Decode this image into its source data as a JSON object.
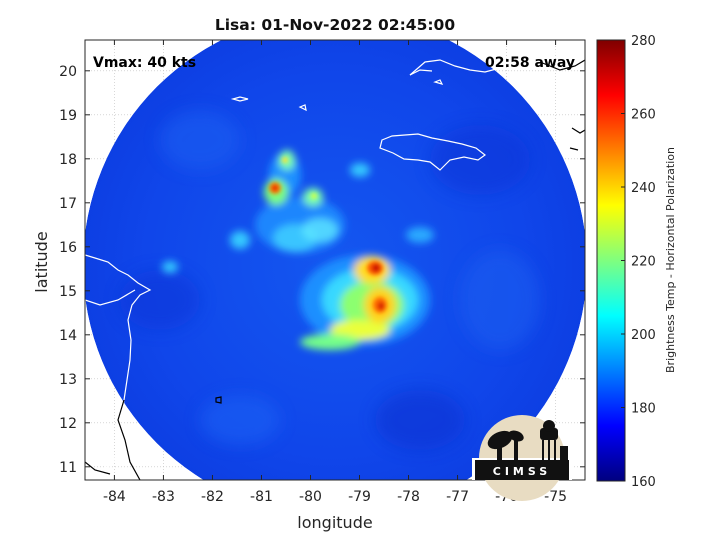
{
  "title": "Lisa: 01-Nov-2022 02:45:00",
  "annotations": {
    "vmax": "Vmax: 40 kts",
    "away": "02:58 away"
  },
  "axes": {
    "xlabel": "longitude",
    "ylabel": "latitude",
    "xlim": [
      -84.6,
      -74.4
    ],
    "ylim": [
      10.7,
      20.7
    ],
    "xticks": [
      -84,
      -83,
      -82,
      -81,
      -80,
      -79,
      -78,
      -77,
      -76,
      -75
    ],
    "yticks": [
      11,
      12,
      13,
      14,
      15,
      16,
      17,
      18,
      19,
      20
    ],
    "grid": true
  },
  "colorbar": {
    "label": "Brightness Temp - Horizontal Polarization",
    "range": [
      160,
      280
    ],
    "ticks": [
      160,
      180,
      200,
      220,
      240,
      260,
      280
    ],
    "colormap": "jet",
    "colormap_stops": [
      "#00007f",
      "#0000ff",
      "#007fff",
      "#00ffff",
      "#7fff7f",
      "#ffff00",
      "#ff7f00",
      "#ff0000",
      "#7f0000"
    ]
  },
  "logo": {
    "text": "CIMSS"
  },
  "colors": {
    "frame": "#262626",
    "grid": "#bfbfbf",
    "coastline": "#ffffff",
    "land_coast": "#000000"
  }
}
